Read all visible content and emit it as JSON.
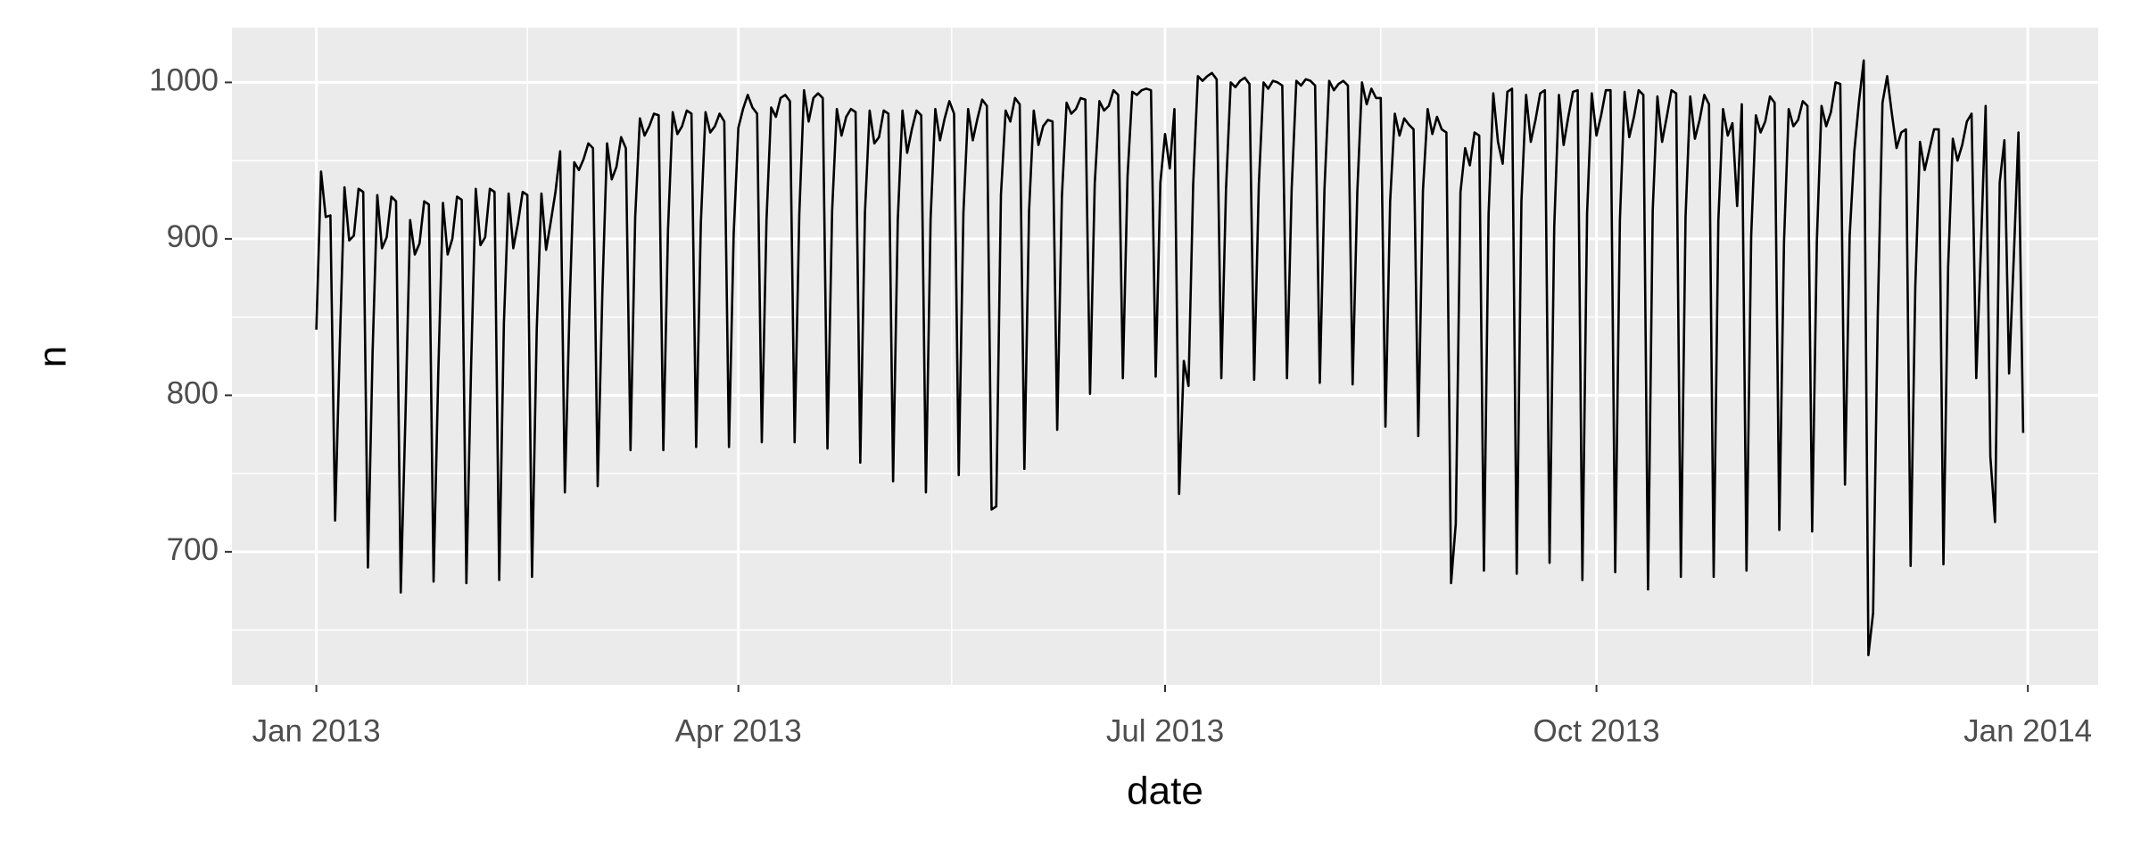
{
  "chart_data": {
    "type": "line",
    "x_label": "date",
    "y_label": "n",
    "color": "#000000",
    "grid": true,
    "xlim": [
      "2012-12-14",
      "2014-01-16"
    ],
    "ylim": [
      615,
      1035
    ],
    "xticks": [
      {
        "value": "2013-01-01",
        "label": "Jan 2013"
      },
      {
        "value": "2013-04-01",
        "label": "Apr 2013"
      },
      {
        "value": "2013-07-01",
        "label": "Jul 2013"
      },
      {
        "value": "2013-10-01",
        "label": "Oct 2013"
      },
      {
        "value": "2014-01-01",
        "label": "Jan 2014"
      }
    ],
    "yticks": [
      700,
      800,
      900,
      1000
    ],
    "x": [
      "2013-01-01",
      "2013-01-02",
      "2013-01-03",
      "2013-01-04",
      "2013-01-05",
      "2013-01-06",
      "2013-01-07",
      "2013-01-08",
      "2013-01-09",
      "2013-01-10",
      "2013-01-11",
      "2013-01-12",
      "2013-01-13",
      "2013-01-14",
      "2013-01-15",
      "2013-01-16",
      "2013-01-17",
      "2013-01-18",
      "2013-01-19",
      "2013-01-20",
      "2013-01-21",
      "2013-01-22",
      "2013-01-23",
      "2013-01-24",
      "2013-01-25",
      "2013-01-26",
      "2013-01-27",
      "2013-01-28",
      "2013-01-29",
      "2013-01-30",
      "2013-01-31",
      "2013-02-01",
      "2013-02-02",
      "2013-02-03",
      "2013-02-04",
      "2013-02-05",
      "2013-02-06",
      "2013-02-07",
      "2013-02-08",
      "2013-02-09",
      "2013-02-10",
      "2013-02-11",
      "2013-02-12",
      "2013-02-13",
      "2013-02-14",
      "2013-02-15",
      "2013-02-16",
      "2013-02-17",
      "2013-02-18",
      "2013-02-19",
      "2013-02-20",
      "2013-02-21",
      "2013-02-22",
      "2013-02-23",
      "2013-02-24",
      "2013-02-25",
      "2013-02-26",
      "2013-02-27",
      "2013-02-28",
      "2013-03-01",
      "2013-03-02",
      "2013-03-03",
      "2013-03-04",
      "2013-03-05",
      "2013-03-06",
      "2013-03-07",
      "2013-03-08",
      "2013-03-09",
      "2013-03-10",
      "2013-03-11",
      "2013-03-12",
      "2013-03-13",
      "2013-03-14",
      "2013-03-15",
      "2013-03-16",
      "2013-03-17",
      "2013-03-18",
      "2013-03-19",
      "2013-03-20",
      "2013-03-21",
      "2013-03-22",
      "2013-03-23",
      "2013-03-24",
      "2013-03-25",
      "2013-03-26",
      "2013-03-27",
      "2013-03-28",
      "2013-03-29",
      "2013-03-30",
      "2013-03-31",
      "2013-04-01",
      "2013-04-02",
      "2013-04-03",
      "2013-04-04",
      "2013-04-05",
      "2013-04-06",
      "2013-04-07",
      "2013-04-08",
      "2013-04-09",
      "2013-04-10",
      "2013-04-11",
      "2013-04-12",
      "2013-04-13",
      "2013-04-14",
      "2013-04-15",
      "2013-04-16",
      "2013-04-17",
      "2013-04-18",
      "2013-04-19",
      "2013-04-20",
      "2013-04-21",
      "2013-04-22",
      "2013-04-23",
      "2013-04-24",
      "2013-04-25",
      "2013-04-26",
      "2013-04-27",
      "2013-04-28",
      "2013-04-29",
      "2013-04-30",
      "2013-05-01",
      "2013-05-02",
      "2013-05-03",
      "2013-05-04",
      "2013-05-05",
      "2013-05-06",
      "2013-05-07",
      "2013-05-08",
      "2013-05-09",
      "2013-05-10",
      "2013-05-11",
      "2013-05-12",
      "2013-05-13",
      "2013-05-14",
      "2013-05-15",
      "2013-05-16",
      "2013-05-17",
      "2013-05-18",
      "2013-05-19",
      "2013-05-20",
      "2013-05-21",
      "2013-05-22",
      "2013-05-23",
      "2013-05-24",
      "2013-05-25",
      "2013-05-26",
      "2013-05-27",
      "2013-05-28",
      "2013-05-29",
      "2013-05-30",
      "2013-05-31",
      "2013-06-01",
      "2013-06-02",
      "2013-06-03",
      "2013-06-04",
      "2013-06-05",
      "2013-06-06",
      "2013-06-07",
      "2013-06-08",
      "2013-06-09",
      "2013-06-10",
      "2013-06-11",
      "2013-06-12",
      "2013-06-13",
      "2013-06-14",
      "2013-06-15",
      "2013-06-16",
      "2013-06-17",
      "2013-06-18",
      "2013-06-19",
      "2013-06-20",
      "2013-06-21",
      "2013-06-22",
      "2013-06-23",
      "2013-06-24",
      "2013-06-25",
      "2013-06-26",
      "2013-06-27",
      "2013-06-28",
      "2013-06-29",
      "2013-06-30",
      "2013-07-01",
      "2013-07-02",
      "2013-07-03",
      "2013-07-04",
      "2013-07-05",
      "2013-07-06",
      "2013-07-07",
      "2013-07-08",
      "2013-07-09",
      "2013-07-10",
      "2013-07-11",
      "2013-07-12",
      "2013-07-13",
      "2013-07-14",
      "2013-07-15",
      "2013-07-16",
      "2013-07-17",
      "2013-07-18",
      "2013-07-19",
      "2013-07-20",
      "2013-07-21",
      "2013-07-22",
      "2013-07-23",
      "2013-07-24",
      "2013-07-25",
      "2013-07-26",
      "2013-07-27",
      "2013-07-28",
      "2013-07-29",
      "2013-07-30",
      "2013-07-31",
      "2013-08-01",
      "2013-08-02",
      "2013-08-03",
      "2013-08-04",
      "2013-08-05",
      "2013-08-06",
      "2013-08-07",
      "2013-08-08",
      "2013-08-09",
      "2013-08-10",
      "2013-08-11",
      "2013-08-12",
      "2013-08-13",
      "2013-08-14",
      "2013-08-15",
      "2013-08-16",
      "2013-08-17",
      "2013-08-18",
      "2013-08-19",
      "2013-08-20",
      "2013-08-21",
      "2013-08-22",
      "2013-08-23",
      "2013-08-24",
      "2013-08-25",
      "2013-08-26",
      "2013-08-27",
      "2013-08-28",
      "2013-08-29",
      "2013-08-30",
      "2013-08-31",
      "2013-09-01",
      "2013-09-02",
      "2013-09-03",
      "2013-09-04",
      "2013-09-05",
      "2013-09-06",
      "2013-09-07",
      "2013-09-08",
      "2013-09-09",
      "2013-09-10",
      "2013-09-11",
      "2013-09-12",
      "2013-09-13",
      "2013-09-14",
      "2013-09-15",
      "2013-09-16",
      "2013-09-17",
      "2013-09-18",
      "2013-09-19",
      "2013-09-20",
      "2013-09-21",
      "2013-09-22",
      "2013-09-23",
      "2013-09-24",
      "2013-09-25",
      "2013-09-26",
      "2013-09-27",
      "2013-09-28",
      "2013-09-29",
      "2013-09-30",
      "2013-10-01",
      "2013-10-02",
      "2013-10-03",
      "2013-10-04",
      "2013-10-05",
      "2013-10-06",
      "2013-10-07",
      "2013-10-08",
      "2013-10-09",
      "2013-10-10",
      "2013-10-11",
      "2013-10-12",
      "2013-10-13",
      "2013-10-14",
      "2013-10-15",
      "2013-10-16",
      "2013-10-17",
      "2013-10-18",
      "2013-10-19",
      "2013-10-20",
      "2013-10-21",
      "2013-10-22",
      "2013-10-23",
      "2013-10-24",
      "2013-10-25",
      "2013-10-26",
      "2013-10-27",
      "2013-10-28",
      "2013-10-29",
      "2013-10-30",
      "2013-10-31",
      "2013-11-01",
      "2013-11-02",
      "2013-11-03",
      "2013-11-04",
      "2013-11-05",
      "2013-11-06",
      "2013-11-07",
      "2013-11-08",
      "2013-11-09",
      "2013-11-10",
      "2013-11-11",
      "2013-11-12",
      "2013-11-13",
      "2013-11-14",
      "2013-11-15",
      "2013-11-16",
      "2013-11-17",
      "2013-11-18",
      "2013-11-19",
      "2013-11-20",
      "2013-11-21",
      "2013-11-22",
      "2013-11-23",
      "2013-11-24",
      "2013-11-25",
      "2013-11-26",
      "2013-11-27",
      "2013-11-28",
      "2013-11-29",
      "2013-11-30",
      "2013-12-01",
      "2013-12-02",
      "2013-12-03",
      "2013-12-04",
      "2013-12-05",
      "2013-12-06",
      "2013-12-07",
      "2013-12-08",
      "2013-12-09",
      "2013-12-10",
      "2013-12-11",
      "2013-12-12",
      "2013-12-13",
      "2013-12-14",
      "2013-12-15",
      "2013-12-16",
      "2013-12-17",
      "2013-12-18",
      "2013-12-19",
      "2013-12-20",
      "2013-12-21",
      "2013-12-22",
      "2013-12-23",
      "2013-12-24",
      "2013-12-25",
      "2013-12-26",
      "2013-12-27",
      "2013-12-28",
      "2013-12-29",
      "2013-12-30",
      "2013-12-31"
    ],
    "values": [
      842,
      943,
      914,
      915,
      720,
      832,
      933,
      899,
      902,
      932,
      930,
      690,
      828,
      928,
      894,
      901,
      927,
      924,
      674,
      786,
      912,
      890,
      897,
      924,
      922,
      681,
      814,
      923,
      890,
      900,
      927,
      925,
      680,
      818,
      932,
      896,
      901,
      932,
      930,
      682,
      846,
      929,
      894,
      910,
      930,
      928,
      684,
      842,
      929,
      893,
      911,
      930,
      956,
      738,
      856,
      949,
      944,
      951,
      961,
      958,
      742,
      866,
      961,
      938,
      946,
      965,
      958,
      765,
      914,
      977,
      966,
      972,
      980,
      979,
      765,
      906,
      981,
      967,
      972,
      982,
      980,
      767,
      910,
      981,
      968,
      972,
      980,
      975,
      767,
      903,
      971,
      983,
      992,
      984,
      980,
      770,
      912,
      984,
      978,
      990,
      992,
      988,
      770,
      916,
      995,
      975,
      990,
      993,
      990,
      766,
      918,
      983,
      966,
      978,
      983,
      981,
      757,
      917,
      982,
      961,
      965,
      982,
      980,
      745,
      912,
      982,
      955,
      970,
      982,
      979,
      738,
      913,
      983,
      963,
      977,
      988,
      980,
      749,
      917,
      983,
      963,
      977,
      989,
      985,
      727,
      729,
      928,
      982,
      975,
      990,
      986,
      753,
      918,
      982,
      960,
      972,
      976,
      975,
      778,
      927,
      987,
      980,
      983,
      990,
      989,
      801,
      935,
      988,
      982,
      985,
      995,
      992,
      811,
      940,
      994,
      992,
      995,
      996,
      995,
      812,
      936,
      967,
      945,
      983,
      737,
      822,
      806,
      935,
      1004,
      1001,
      1004,
      1006,
      1002,
      811,
      932,
      1000,
      997,
      1001,
      1003,
      999,
      810,
      935,
      1000,
      996,
      1001,
      1000,
      998,
      811,
      932,
      1001,
      998,
      1002,
      1001,
      998,
      808,
      932,
      1001,
      995,
      999,
      1001,
      998,
      807,
      930,
      1000,
      986,
      996,
      990,
      990,
      780,
      924,
      980,
      966,
      977,
      973,
      970,
      774,
      931,
      983,
      967,
      978,
      970,
      968,
      680,
      718,
      930,
      958,
      947,
      968,
      966,
      688,
      916,
      993,
      962,
      948,
      994,
      996,
      686,
      924,
      992,
      962,
      976,
      993,
      995,
      693,
      908,
      992,
      960,
      978,
      994,
      995,
      682,
      916,
      993,
      966,
      979,
      995,
      995,
      687,
      912,
      994,
      965,
      978,
      995,
      992,
      676,
      918,
      991,
      962,
      978,
      995,
      993,
      684,
      914,
      991,
      964,
      976,
      992,
      986,
      684,
      912,
      983,
      966,
      974,
      921,
      986,
      688,
      902,
      979,
      968,
      975,
      991,
      987,
      714,
      898,
      983,
      972,
      976,
      988,
      985,
      713,
      898,
      985,
      972,
      981,
      1000,
      999,
      743,
      902,
      956,
      988,
      1014,
      634,
      661,
      852,
      987,
      1004,
      980,
      958,
      968,
      970,
      691,
      870,
      962,
      944,
      957,
      970,
      970,
      692,
      882,
      964,
      950,
      960,
      975,
      980,
      811,
      895,
      985,
      761,
      719,
      936,
      963,
      814,
      888,
      968,
      776
    ]
  }
}
